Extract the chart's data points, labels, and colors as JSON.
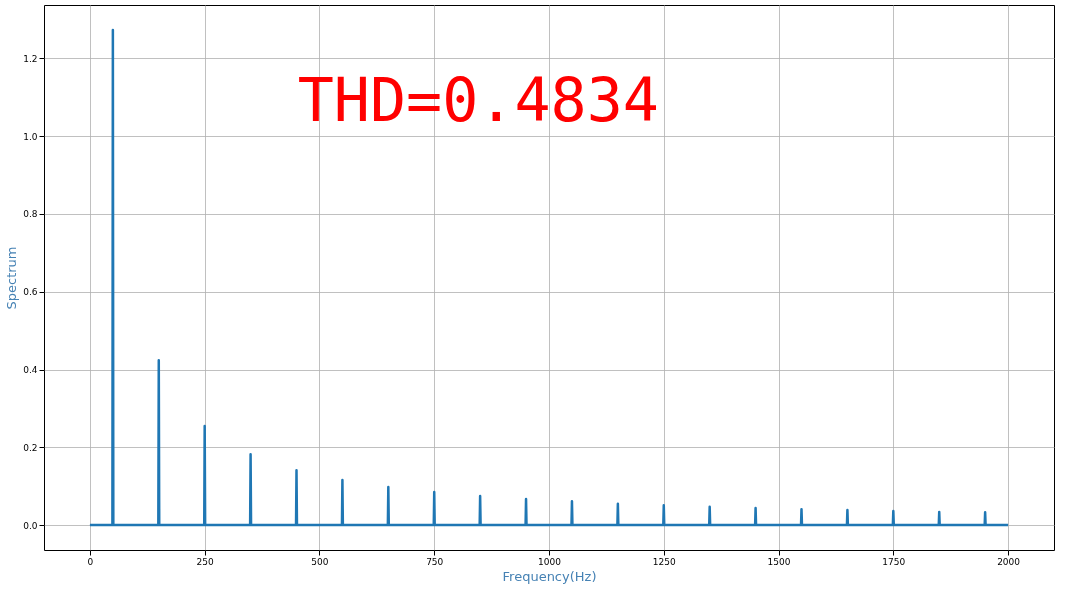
{
  "chart_data": {
    "type": "line",
    "xlabel": "Frequency(Hz)",
    "ylabel": "Spectrum",
    "annotations": [
      "THD=0.4834"
    ],
    "series": [
      {
        "color": "#1f77b4",
        "x": [
          0,
          49,
          50,
          51,
          149,
          150,
          151,
          249,
          250,
          251,
          349,
          350,
          351,
          449,
          450,
          451,
          549,
          550,
          551,
          649,
          650,
          651,
          749,
          750,
          751,
          849,
          850,
          851,
          949,
          950,
          951,
          1049,
          1050,
          1051,
          1149,
          1150,
          1151,
          1249,
          1250,
          1251,
          1349,
          1350,
          1351,
          1449,
          1450,
          1451,
          1549,
          1550,
          1551,
          1649,
          1650,
          1651,
          1749,
          1750,
          1751,
          1849,
          1850,
          1851,
          1949,
          1950,
          1951,
          2000
        ],
        "values": [
          0,
          0,
          1.273,
          0,
          0,
          0.424,
          0,
          0,
          0.255,
          0,
          0,
          0.182,
          0,
          0,
          0.141,
          0,
          0,
          0.116,
          0,
          0,
          0.098,
          0,
          0,
          0.085,
          0,
          0,
          0.075,
          0,
          0,
          0.067,
          0,
          0,
          0.061,
          0,
          0,
          0.055,
          0,
          0,
          0.051,
          0,
          0,
          0.047,
          0,
          0,
          0.044,
          0,
          0,
          0.041,
          0,
          0,
          0.039,
          0,
          0,
          0.036,
          0,
          0,
          0.034,
          0,
          0,
          0.033,
          0,
          0
        ]
      }
    ],
    "xlim": [
      -100,
      2100
    ],
    "xticks": [
      0,
      250,
      500,
      750,
      1000,
      1250,
      1500,
      1750,
      2000
    ],
    "ylim": [
      -0.064,
      1.337
    ],
    "yticks": [
      {
        "value": 0,
        "label": "0.0"
      },
      0.2,
      0.4,
      0.6,
      0.8,
      {
        "value": 1,
        "label": "1.0"
      },
      1.2
    ],
    "grid": true
  }
}
